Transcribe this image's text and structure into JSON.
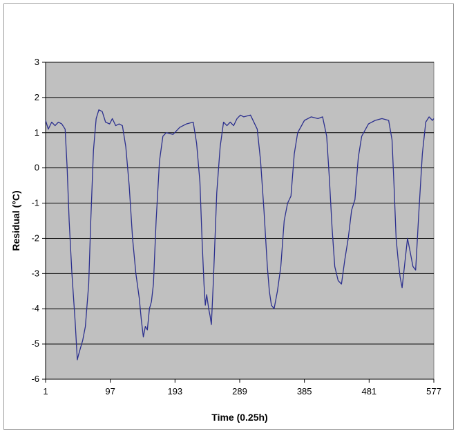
{
  "chart_data": {
    "type": "line",
    "title": "",
    "xlabel": "Time (0.25h)",
    "ylabel": "Residual (°C)",
    "xlim": [
      1,
      577
    ],
    "ylim": [
      -6,
      3
    ],
    "x_ticks": [
      "1",
      "97",
      "193",
      "289",
      "385",
      "481",
      "577"
    ],
    "y_ticks": [
      "3",
      "2",
      "1",
      "0",
      "-1",
      "-2",
      "-3",
      "-4",
      "-5",
      "-6"
    ],
    "grid": "horizontal",
    "legend": "none",
    "colors": {
      "plot_background": "#c0c0c0",
      "line": "#2b2f8e",
      "grid": "#000000"
    },
    "series": [
      {
        "x": [
          1,
          5,
          10,
          15,
          20,
          25,
          30,
          33,
          36,
          40,
          45,
          48,
          50,
          53,
          56,
          60,
          65,
          68,
          72,
          76,
          80,
          85,
          90,
          96,
          100,
          105,
          110,
          115,
          120,
          125,
          130,
          135,
          140,
          143,
          146,
          149,
          152,
          155,
          158,
          161,
          165,
          170,
          175,
          180,
          190,
          200,
          210,
          220,
          225,
          230,
          233,
          236,
          238,
          240,
          243,
          245,
          247,
          250,
          255,
          260,
          265,
          270,
          275,
          280,
          285,
          290,
          295,
          305,
          315,
          320,
          325,
          330,
          333,
          336,
          340,
          345,
          350,
          355,
          360,
          365,
          370,
          375,
          385,
          395,
          405,
          412,
          418,
          422,
          426,
          430,
          435,
          440,
          445,
          450,
          455,
          460,
          465,
          470,
          480,
          490,
          500,
          510,
          515,
          518,
          521,
          524,
          527,
          530,
          534,
          538,
          542,
          546,
          550,
          555,
          560,
          565,
          570,
          575,
          577
        ],
        "y": [
          1.35,
          1.1,
          1.3,
          1.2,
          1.3,
          1.25,
          1.1,
          0.0,
          -1.5,
          -3.0,
          -4.4,
          -5.45,
          -5.3,
          -5.1,
          -4.9,
          -4.5,
          -3.3,
          -1.5,
          0.5,
          1.4,
          1.65,
          1.6,
          1.3,
          1.25,
          1.4,
          1.2,
          1.25,
          1.2,
          0.6,
          -0.5,
          -2.0,
          -3.0,
          -3.7,
          -4.3,
          -4.8,
          -4.5,
          -4.6,
          -4.0,
          -3.8,
          -3.3,
          -1.5,
          0.2,
          0.9,
          1.0,
          0.95,
          1.15,
          1.25,
          1.3,
          0.7,
          -0.4,
          -2.0,
          -3.3,
          -3.9,
          -3.6,
          -4.0,
          -4.2,
          -4.45,
          -3.2,
          -0.7,
          0.6,
          1.3,
          1.2,
          1.3,
          1.2,
          1.4,
          1.5,
          1.45,
          1.5,
          1.1,
          0.2,
          -1.2,
          -2.8,
          -3.5,
          -3.9,
          -4.0,
          -3.5,
          -2.8,
          -1.5,
          -1.0,
          -0.8,
          0.4,
          1.0,
          1.35,
          1.45,
          1.4,
          1.45,
          0.9,
          -0.3,
          -1.7,
          -2.8,
          -3.2,
          -3.3,
          -2.6,
          -2.0,
          -1.2,
          -0.9,
          0.3,
          0.9,
          1.25,
          1.35,
          1.4,
          1.35,
          0.8,
          -0.5,
          -2.0,
          -2.6,
          -3.1,
          -3.4,
          -2.7,
          -2.0,
          -2.4,
          -2.8,
          -2.9,
          -1.2,
          0.4,
          1.3,
          1.45,
          1.35,
          1.4
        ]
      }
    ]
  }
}
